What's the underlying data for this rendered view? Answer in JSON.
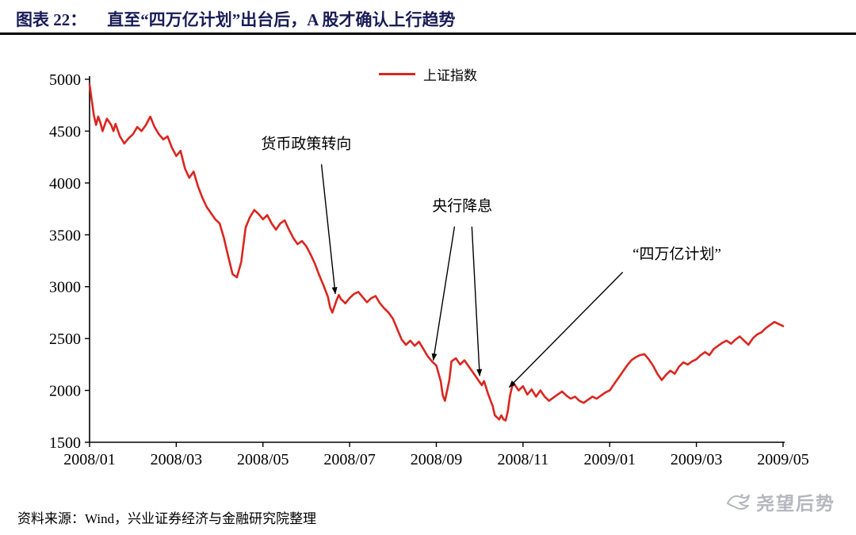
{
  "header": {
    "prefix": "图表 22：",
    "text": "直至“四万亿计划”出台后，A 股才确认上行趋势"
  },
  "legend": {
    "label": "上证指数"
  },
  "colors": {
    "line": "#D9261F",
    "title": "#181C56",
    "axis": "#000000",
    "annotation_text": "#000000",
    "watermark": "#B3B7BD"
  },
  "chart_data": {
    "type": "line",
    "title": "",
    "xlabel": "",
    "ylabel": "",
    "grid": false,
    "legend_position": "top-center",
    "x_range": [
      0,
      16
    ],
    "ylim": [
      1500,
      5000
    ],
    "y_ticks": [
      5000,
      4500,
      4000,
      3500,
      3000,
      2500,
      2000,
      1500
    ],
    "x_tick_months": [
      0,
      2,
      4,
      6,
      8,
      10,
      12,
      14,
      16
    ],
    "x_tick_labels": [
      "2008/01",
      "2008/03",
      "2008/05",
      "2008/07",
      "2008/09",
      "2008/11",
      "2009/01",
      "2009/03",
      "2009/05"
    ],
    "series": [
      {
        "name": "上证指数",
        "color": "#D9261F",
        "points": [
          [
            0,
            4950
          ],
          [
            0.05,
            4800
          ],
          [
            0.1,
            4650
          ],
          [
            0.15,
            4560
          ],
          [
            0.2,
            4640
          ],
          [
            0.25,
            4580
          ],
          [
            0.3,
            4500
          ],
          [
            0.35,
            4560
          ],
          [
            0.4,
            4620
          ],
          [
            0.5,
            4560
          ],
          [
            0.55,
            4500
          ],
          [
            0.6,
            4570
          ],
          [
            0.7,
            4450
          ],
          [
            0.8,
            4380
          ],
          [
            0.9,
            4430
          ],
          [
            1,
            4470
          ],
          [
            1.1,
            4540
          ],
          [
            1.2,
            4500
          ],
          [
            1.3,
            4560
          ],
          [
            1.4,
            4640
          ],
          [
            1.5,
            4540
          ],
          [
            1.6,
            4470
          ],
          [
            1.7,
            4420
          ],
          [
            1.8,
            4450
          ],
          [
            1.9,
            4340
          ],
          [
            2,
            4260
          ],
          [
            2.1,
            4310
          ],
          [
            2.2,
            4140
          ],
          [
            2.3,
            4050
          ],
          [
            2.4,
            4110
          ],
          [
            2.5,
            3970
          ],
          [
            2.6,
            3860
          ],
          [
            2.7,
            3770
          ],
          [
            2.8,
            3710
          ],
          [
            2.9,
            3650
          ],
          [
            3,
            3610
          ],
          [
            3.1,
            3470
          ],
          [
            3.2,
            3290
          ],
          [
            3.3,
            3120
          ],
          [
            3.4,
            3090
          ],
          [
            3.5,
            3240
          ],
          [
            3.6,
            3570
          ],
          [
            3.7,
            3670
          ],
          [
            3.8,
            3740
          ],
          [
            3.9,
            3700
          ],
          [
            4,
            3650
          ],
          [
            4.1,
            3690
          ],
          [
            4.2,
            3610
          ],
          [
            4.3,
            3550
          ],
          [
            4.4,
            3610
          ],
          [
            4.5,
            3640
          ],
          [
            4.6,
            3550
          ],
          [
            4.7,
            3470
          ],
          [
            4.8,
            3410
          ],
          [
            4.9,
            3440
          ],
          [
            5,
            3390
          ],
          [
            5.1,
            3310
          ],
          [
            5.2,
            3220
          ],
          [
            5.3,
            3110
          ],
          [
            5.4,
            3010
          ],
          [
            5.5,
            2900
          ],
          [
            5.55,
            2800
          ],
          [
            5.6,
            2750
          ],
          [
            5.7,
            2870
          ],
          [
            5.75,
            2920
          ],
          [
            5.8,
            2880
          ],
          [
            5.9,
            2840
          ],
          [
            6,
            2890
          ],
          [
            6.1,
            2930
          ],
          [
            6.2,
            2950
          ],
          [
            6.3,
            2900
          ],
          [
            6.4,
            2850
          ],
          [
            6.5,
            2890
          ],
          [
            6.6,
            2910
          ],
          [
            6.7,
            2840
          ],
          [
            6.8,
            2790
          ],
          [
            6.9,
            2750
          ],
          [
            7,
            2690
          ],
          [
            7.1,
            2590
          ],
          [
            7.2,
            2490
          ],
          [
            7.3,
            2440
          ],
          [
            7.4,
            2480
          ],
          [
            7.5,
            2430
          ],
          [
            7.6,
            2470
          ],
          [
            7.7,
            2400
          ],
          [
            7.8,
            2330
          ],
          [
            7.9,
            2280
          ],
          [
            8,
            2240
          ],
          [
            8.1,
            2090
          ],
          [
            8.15,
            1950
          ],
          [
            8.2,
            1900
          ],
          [
            8.3,
            2100
          ],
          [
            8.35,
            2280
          ],
          [
            8.45,
            2310
          ],
          [
            8.55,
            2250
          ],
          [
            8.65,
            2290
          ],
          [
            8.75,
            2230
          ],
          [
            8.85,
            2170
          ],
          [
            8.95,
            2110
          ],
          [
            9.05,
            2050
          ],
          [
            9.1,
            2090
          ],
          [
            9.2,
            1960
          ],
          [
            9.3,
            1850
          ],
          [
            9.35,
            1760
          ],
          [
            9.45,
            1720
          ],
          [
            9.5,
            1760
          ],
          [
            9.55,
            1720
          ],
          [
            9.6,
            1710
          ],
          [
            9.65,
            1800
          ],
          [
            9.7,
            1950
          ],
          [
            9.75,
            2040
          ],
          [
            9.8,
            2060
          ],
          [
            9.9,
            2000
          ],
          [
            10,
            2040
          ],
          [
            10.1,
            1960
          ],
          [
            10.2,
            2010
          ],
          [
            10.3,
            1940
          ],
          [
            10.4,
            2000
          ],
          [
            10.5,
            1940
          ],
          [
            10.6,
            1900
          ],
          [
            10.7,
            1930
          ],
          [
            10.8,
            1960
          ],
          [
            10.9,
            1990
          ],
          [
            11,
            1950
          ],
          [
            11.1,
            1920
          ],
          [
            11.2,
            1940
          ],
          [
            11.3,
            1900
          ],
          [
            11.4,
            1880
          ],
          [
            11.5,
            1910
          ],
          [
            11.6,
            1940
          ],
          [
            11.7,
            1920
          ],
          [
            11.8,
            1950
          ],
          [
            11.9,
            1980
          ],
          [
            12,
            2000
          ],
          [
            12.1,
            2060
          ],
          [
            12.2,
            2120
          ],
          [
            12.3,
            2180
          ],
          [
            12.4,
            2240
          ],
          [
            12.5,
            2290
          ],
          [
            12.6,
            2320
          ],
          [
            12.7,
            2340
          ],
          [
            12.8,
            2350
          ],
          [
            12.9,
            2300
          ],
          [
            13,
            2240
          ],
          [
            13.1,
            2160
          ],
          [
            13.2,
            2100
          ],
          [
            13.3,
            2150
          ],
          [
            13.4,
            2190
          ],
          [
            13.5,
            2160
          ],
          [
            13.6,
            2230
          ],
          [
            13.7,
            2270
          ],
          [
            13.8,
            2250
          ],
          [
            13.9,
            2280
          ],
          [
            14,
            2300
          ],
          [
            14.1,
            2340
          ],
          [
            14.2,
            2370
          ],
          [
            14.3,
            2340
          ],
          [
            14.4,
            2400
          ],
          [
            14.5,
            2430
          ],
          [
            14.6,
            2460
          ],
          [
            14.7,
            2480
          ],
          [
            14.8,
            2450
          ],
          [
            14.9,
            2490
          ],
          [
            15,
            2520
          ],
          [
            15.1,
            2480
          ],
          [
            15.2,
            2440
          ],
          [
            15.3,
            2500
          ],
          [
            15.4,
            2540
          ],
          [
            15.5,
            2560
          ],
          [
            15.6,
            2600
          ],
          [
            15.7,
            2630
          ],
          [
            15.8,
            2660
          ],
          [
            15.9,
            2640
          ],
          [
            16,
            2620
          ]
        ]
      }
    ],
    "annotations": [
      {
        "label": "货币政策转向",
        "text_at": [
          5.0,
          4330
        ],
        "arrows": [
          {
            "from": [
              5.35,
              4180
            ],
            "to": [
              5.67,
              2930
            ]
          }
        ]
      },
      {
        "label": "央行降息",
        "text_at": [
          8.6,
          3730
        ],
        "arrows": [
          {
            "from": [
              8.42,
              3580
            ],
            "to": [
              7.93,
              2290
            ]
          },
          {
            "from": [
              8.82,
              3580
            ],
            "to": [
              9.0,
              2140
            ]
          }
        ]
      },
      {
        "label": "“四万亿计划”",
        "text_at": [
          13.55,
          3270
        ],
        "arrows": [
          {
            "from": [
              12.3,
              3140
            ],
            "to": [
              9.68,
              2030
            ]
          }
        ]
      }
    ]
  },
  "footer": {
    "source": "资料来源：Wind，兴业证券经济与金融研究院整理",
    "watermark": "尧望后势"
  }
}
